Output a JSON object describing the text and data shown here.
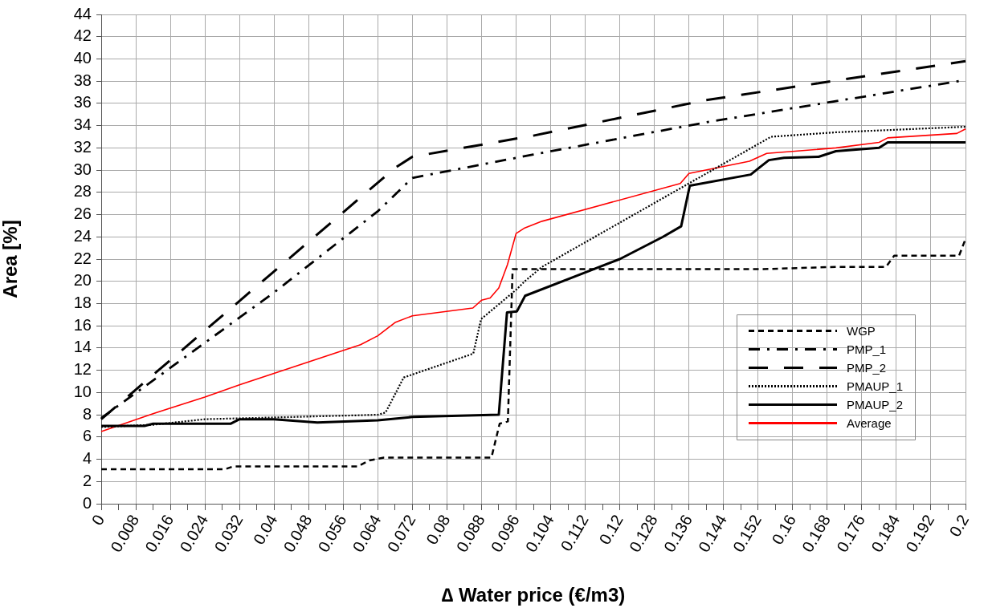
{
  "chart_data": {
    "type": "line",
    "xlabel": "∆ Water price (€/m3)",
    "ylabel": "Area [%]",
    "xlim": [
      0,
      0.2
    ],
    "ylim": [
      0,
      44
    ],
    "xticks": [
      0,
      {
        "value": 0.004,
        "label": null
      },
      0.008,
      {
        "value": 0.012,
        "label": null
      },
      0.016,
      {
        "value": 0.02,
        "label": null
      },
      0.024,
      {
        "value": 0.028,
        "label": null
      },
      0.032,
      {
        "value": 0.036,
        "label": null
      },
      0.04,
      {
        "value": 0.044,
        "label": null
      },
      0.048,
      {
        "value": 0.052,
        "label": null
      },
      0.056,
      {
        "value": 0.06,
        "label": null
      },
      0.064,
      {
        "value": 0.068,
        "label": null
      },
      0.072,
      {
        "value": 0.076,
        "label": null
      },
      0.08,
      {
        "value": 0.084,
        "label": null
      },
      0.088,
      {
        "value": 0.092,
        "label": null
      },
      0.096,
      {
        "value": 0.1,
        "label": null
      },
      0.104,
      {
        "value": 0.108,
        "label": null
      },
      0.112,
      {
        "value": 0.116,
        "label": null
      },
      0.12,
      {
        "value": 0.124,
        "label": null
      },
      0.128,
      {
        "value": 0.132,
        "label": null
      },
      0.136,
      {
        "value": 0.14,
        "label": null
      },
      0.144,
      {
        "value": 0.148,
        "label": null
      },
      0.152,
      {
        "value": 0.156,
        "label": null
      },
      0.16,
      {
        "value": 0.164,
        "label": null
      },
      0.168,
      {
        "value": 0.172,
        "label": null
      },
      0.176,
      {
        "value": 0.18,
        "label": null
      },
      0.184,
      {
        "value": 0.188,
        "label": null
      },
      0.192,
      {
        "value": 0.196,
        "label": null
      },
      0.2
    ],
    "yticks": [
      0,
      2,
      4,
      6,
      8,
      10,
      12,
      14,
      16,
      18,
      20,
      22,
      24,
      26,
      28,
      30,
      32,
      34,
      36,
      38,
      40,
      42,
      44
    ],
    "grid": true,
    "legend": "bottom right",
    "marker": "none",
    "series": [
      {
        "name": "WGP",
        "color": "#000000",
        "line_style": "dashed",
        "x": [
          0,
          0.0286,
          0.0305,
          0.0593,
          0.0621,
          0.0654,
          0.0903,
          0.0922,
          0.0941,
          0.0952,
          0.1532,
          0.1699,
          0.1816,
          0.1835,
          0.1985,
          0.2
        ],
        "values": [
          3.1,
          3.1,
          3.35,
          3.35,
          3.9,
          4.15,
          4.15,
          7.2,
          7.4,
          21.1,
          21.1,
          21.3,
          21.3,
          22.3,
          22.3,
          23.8
        ]
      },
      {
        "name": "PMP_1",
        "color": "#000000",
        "line_style": "dashdot",
        "x": [
          0,
          0.04,
          0.064,
          0.072,
          0.1,
          0.14,
          0.2
        ],
        "values": [
          7.7,
          19,
          26.3,
          29.3,
          31.4,
          34.3,
          38.1
        ]
      },
      {
        "name": "PMP_2",
        "color": "#000000",
        "line_style": "longdash",
        "x": [
          0,
          0.068,
          0.072,
          0.1,
          0.14,
          0.2
        ],
        "values": [
          7.6,
          30.2,
          31.2,
          33.1,
          36.3,
          39.8
        ]
      },
      {
        "name": "PMAUP_1",
        "color": "#000000",
        "line_style": "dotted",
        "x": [
          0,
          0.012,
          0.024,
          0.064,
          0.0658,
          0.07,
          0.0861,
          0.0879,
          0.0962,
          0.098,
          0.102,
          0.155,
          0.17,
          0.2
        ],
        "values": [
          6.9,
          7.1,
          7.6,
          8.0,
          8.2,
          11.35,
          13.5,
          16.6,
          19.3,
          20,
          21.3,
          33.0,
          33.4,
          33.9
        ]
      },
      {
        "name": "PMAUP_2",
        "color": "#000000",
        "line_style": "solid",
        "x": [
          0,
          0.01,
          0.012,
          0.03,
          0.032,
          0.04,
          0.05,
          0.064,
          0.072,
          0.092,
          0.0939,
          0.0962,
          0.0981,
          0.11,
          0.12,
          0.13,
          0.1342,
          0.1362,
          0.1503,
          0.1522,
          0.1545,
          0.158,
          0.166,
          0.17,
          0.18,
          0.182,
          0.2
        ],
        "values": [
          7,
          7.0,
          7.2,
          7.2,
          7.6,
          7.6,
          7.3,
          7.5,
          7.8,
          8.0,
          17.2,
          17.3,
          18.7,
          20.5,
          22,
          24,
          24.95,
          28.6,
          29.6,
          30.2,
          30.9,
          31.1,
          31.2,
          31.7,
          32,
          32.5,
          32.5
        ]
      },
      {
        "name": "Average",
        "color": "#ff0000",
        "line_style": "solid",
        "x": [
          0,
          0.012,
          0.024,
          0.032,
          0.06,
          0.064,
          0.068,
          0.072,
          0.086,
          0.088,
          0.09,
          0.092,
          0.094,
          0.096,
          0.098,
          0.102,
          0.134,
          0.136,
          0.15,
          0.154,
          0.17,
          0.18,
          0.182,
          0.198,
          0.2
        ],
        "values": [
          6.5,
          8.1,
          9.6,
          10.7,
          14.3,
          15.1,
          16.3,
          16.9,
          17.6,
          18.3,
          18.5,
          19.4,
          21.5,
          24.3,
          24.8,
          25.4,
          28.8,
          29.7,
          30.8,
          31.5,
          32.0,
          32.5,
          32.9,
          33.3,
          33.7
        ]
      }
    ]
  }
}
